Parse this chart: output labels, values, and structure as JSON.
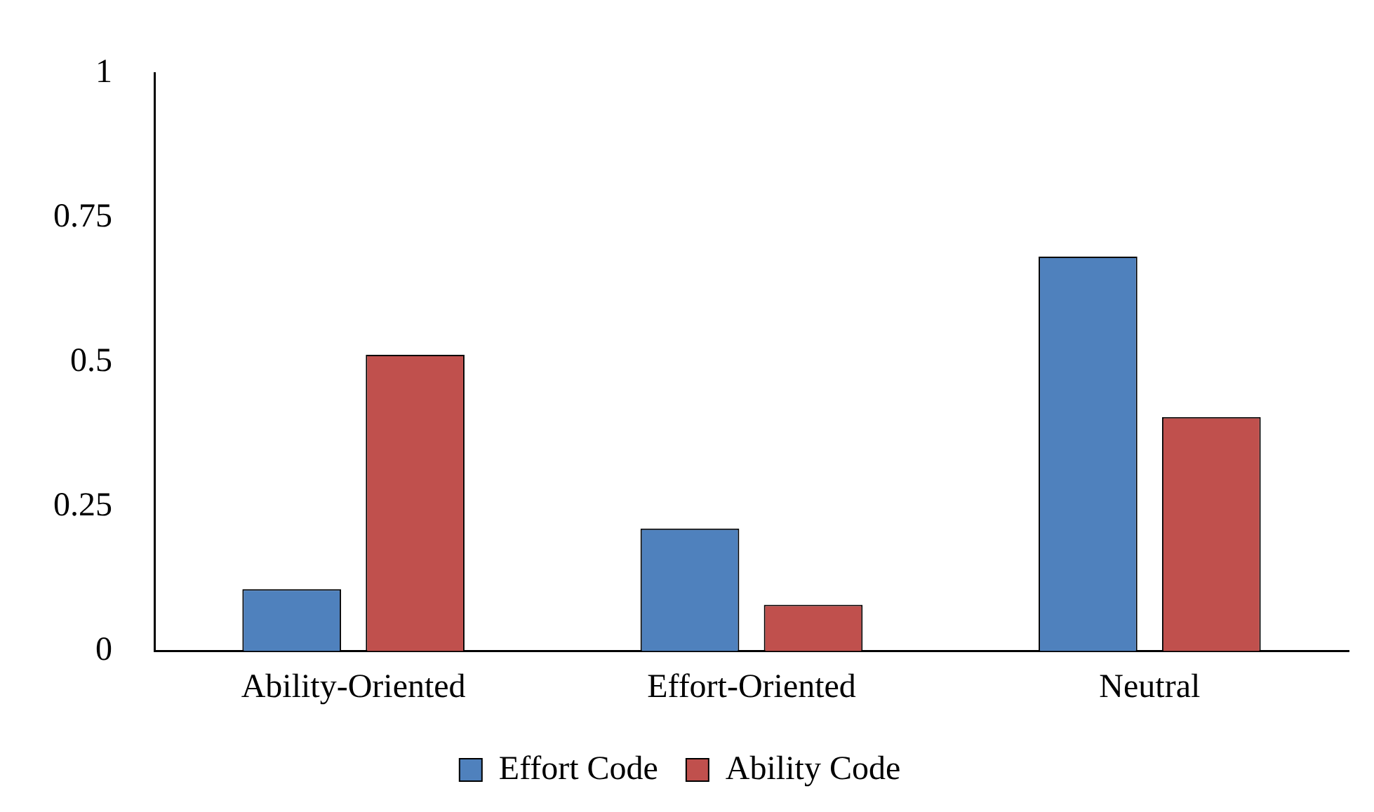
{
  "chart_data": {
    "type": "bar",
    "categories": [
      "Ability-Oriented",
      "Effort-Oriented",
      "Neutral"
    ],
    "series": [
      {
        "name": "Effort Code",
        "color": "#4f81bd",
        "values": [
          0.107,
          0.212,
          0.683
        ]
      },
      {
        "name": "Ability Code",
        "color": "#c0504d",
        "values": [
          0.513,
          0.08,
          0.405
        ]
      }
    ],
    "ylim": [
      0,
      1
    ],
    "yticks": [
      0,
      0.25,
      0.5,
      0.75,
      1
    ],
    "grid": false,
    "legend": "bottom"
  }
}
